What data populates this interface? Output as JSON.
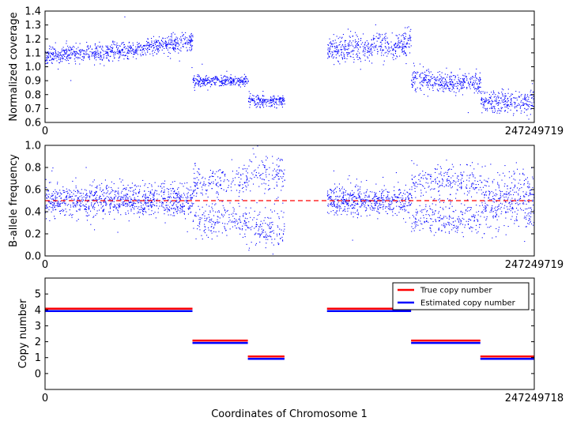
{
  "figure": {
    "xlabel": "Coordinates of Chromosome 1"
  },
  "chart_data": [
    {
      "type": "scatter",
      "ylabel": "Normalized coverage",
      "xlim": [
        0,
        247249719
      ],
      "x_tick_labels": [
        "0",
        "247249719"
      ],
      "ylim": [
        0.6,
        1.4
      ],
      "y_ticks": [
        0.6,
        0.7,
        0.8,
        0.9,
        1.0,
        1.1,
        1.2,
        1.3,
        1.4
      ],
      "y_tick_labels": [
        "0.6",
        "0.7",
        "0.8",
        "0.9",
        "1.0",
        "1.1",
        "1.2",
        "1.3",
        "1.4"
      ],
      "point_color": "#0000ff",
      "segments": [
        {
          "x_start": 0,
          "x_end": 47000000,
          "y_start": 1.08,
          "y_end": 1.13,
          "spread": 0.03
        },
        {
          "x_start": 47000000,
          "x_end": 74500000,
          "y_start": 1.14,
          "y_end": 1.18,
          "spread": 0.03
        },
        {
          "x_start": 74500000,
          "x_end": 102500000,
          "y_start": 0.9,
          "y_end": 0.9,
          "spread": 0.02
        },
        {
          "x_start": 102500000,
          "x_end": 121000000,
          "y_start": 0.76,
          "y_end": 0.76,
          "spread": 0.02
        },
        {
          "x_start": 142500000,
          "x_end": 185000000,
          "y_start": 1.13,
          "y_end": 1.16,
          "spread": 0.05
        },
        {
          "x_start": 185000000,
          "x_end": 220000000,
          "y_start": 0.91,
          "y_end": 0.88,
          "spread": 0.04
        },
        {
          "x_start": 220000000,
          "x_end": 247249719,
          "y_start": 0.75,
          "y_end": 0.75,
          "spread": 0.04
        }
      ]
    },
    {
      "type": "scatter",
      "ylabel": "B-allele frequency",
      "xlim": [
        0,
        247249719
      ],
      "x_tick_labels": [
        "0",
        "247249719"
      ],
      "ylim": [
        0.0,
        1.0
      ],
      "y_ticks": [
        0.0,
        0.2,
        0.4,
        0.6,
        0.8,
        1.0
      ],
      "y_tick_labels": [
        "0.0",
        "0.2",
        "0.4",
        "0.6",
        "0.8",
        "1.0"
      ],
      "point_color": "#0000ff",
      "reference_line": {
        "y": 0.5,
        "color": "#ff0000",
        "style": "dashed"
      },
      "segments": [
        {
          "x_start": 0,
          "x_end": 74500000,
          "centers": [
            0.5
          ],
          "spread": 0.07
        },
        {
          "x_start": 74500000,
          "x_end": 102500000,
          "centers": [
            0.32,
            0.68
          ],
          "spread": 0.08
        },
        {
          "x_start": 102500000,
          "x_end": 121000000,
          "centers": [
            0.25,
            0.75
          ],
          "spread": 0.09
        },
        {
          "x_start": 142500000,
          "x_end": 185000000,
          "centers": [
            0.5
          ],
          "spread": 0.06
        },
        {
          "x_start": 185000000,
          "x_end": 220000000,
          "centers": [
            0.33,
            0.67
          ],
          "spread": 0.07
        },
        {
          "x_start": 220000000,
          "x_end": 247249719,
          "centers": [
            0.5
          ],
          "spread": 0.13
        }
      ]
    },
    {
      "type": "line",
      "ylabel": "Copy number",
      "xlim": [
        0,
        247249718
      ],
      "x_tick_labels": [
        "0",
        "247249718"
      ],
      "ylim": [
        -1,
        6
      ],
      "y_ticks": [
        0,
        1,
        2,
        3,
        4,
        5
      ],
      "y_tick_labels": [
        "0",
        "1",
        "2",
        "3",
        "4",
        "5"
      ],
      "legend_position": "top-right",
      "series": [
        {
          "name": "True copy number",
          "color": "#ff0000",
          "segments": [
            {
              "x_start": 0,
              "x_end": 74500000,
              "value": 4
            },
            {
              "x_start": 74500000,
              "x_end": 102500000,
              "value": 2
            },
            {
              "x_start": 102500000,
              "x_end": 121000000,
              "value": 1
            },
            {
              "x_start": 142500000,
              "x_end": 185000000,
              "value": 4
            },
            {
              "x_start": 185000000,
              "x_end": 220000000,
              "value": 2
            },
            {
              "x_start": 220000000,
              "x_end": 247249718,
              "value": 1
            }
          ]
        },
        {
          "name": "Estimated copy number",
          "color": "#0000ff",
          "segments": [
            {
              "x_start": 0,
              "x_end": 74500000,
              "value": 4
            },
            {
              "x_start": 74500000,
              "x_end": 102500000,
              "value": 2
            },
            {
              "x_start": 102500000,
              "x_end": 121000000,
              "value": 1
            },
            {
              "x_start": 142500000,
              "x_end": 185000000,
              "value": 4
            },
            {
              "x_start": 185000000,
              "x_end": 220000000,
              "value": 2
            },
            {
              "x_start": 220000000,
              "x_end": 247249718,
              "value": 1
            }
          ]
        }
      ]
    }
  ]
}
